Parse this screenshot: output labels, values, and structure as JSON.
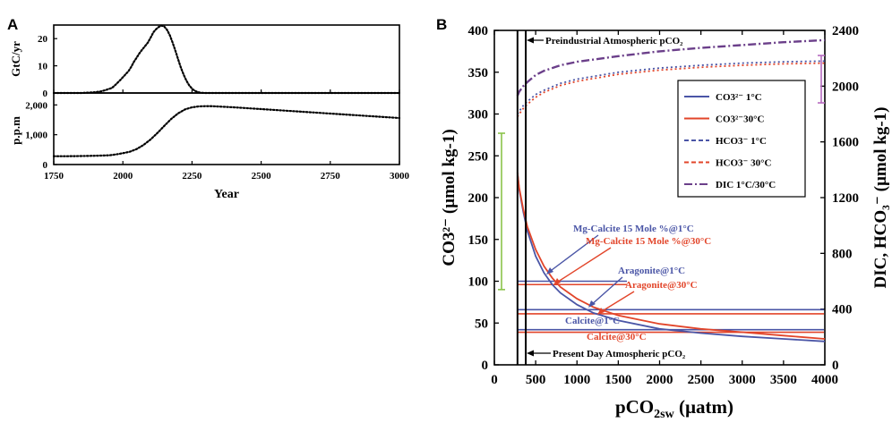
{
  "panels": {
    "a": "A",
    "b": "B"
  },
  "chart_data": [
    {
      "panel": "A",
      "type": "line",
      "subplots": [
        {
          "ylabel": "GtC/yr",
          "ylim": [
            0,
            25
          ],
          "yticks": [
            "0",
            "10",
            "20"
          ],
          "series": [
            {
              "style": "dotted",
              "x": [
                1750,
                1850,
                1900,
                1920,
                1935,
                1950,
                1960,
                1970,
                1980,
                1990,
                2000,
                2010,
                2020,
                2030,
                2040,
                2050,
                2060,
                2070,
                2080,
                2090,
                2100,
                2110,
                2120,
                2130,
                2140,
                2150,
                2160,
                2170,
                2180,
                2190,
                2200,
                2210,
                2220,
                2230,
                2240,
                2250,
                2260,
                2270,
                2280,
                2300,
                2350,
                3000
              ],
              "values": [
                0,
                0,
                0.3,
                0.6,
                1.0,
                1.5,
                1.8,
                2.7,
                3.7,
                4.7,
                5.8,
                6.9,
                8.0,
                9.6,
                11.5,
                13.0,
                14.6,
                16.0,
                17.2,
                18.5,
                20.3,
                22.3,
                23.5,
                24.3,
                24.8,
                24.4,
                23.2,
                21.2,
                18.5,
                15.5,
                12.3,
                9.3,
                6.7,
                4.5,
                2.8,
                1.6,
                0.8,
                0.4,
                0.1,
                0,
                0,
                0
              ]
            }
          ]
        },
        {
          "ylabel": "p.p.m",
          "ylim": [
            0,
            2400
          ],
          "yticks": [
            "0",
            "1,000",
            "2,000"
          ],
          "series": [
            {
              "style": "dotted",
              "x": [
                1750,
                1800,
                1850,
                1900,
                1950,
                1975,
                2000,
                2025,
                2050,
                2075,
                2100,
                2125,
                2150,
                2175,
                2200,
                2225,
                2250,
                2275,
                2300,
                2325,
                2350,
                2400,
                2450,
                2500,
                2600,
                2700,
                2800,
                2900,
                3000
              ],
              "values": [
                280,
                280,
                285,
                295,
                310,
                340,
                380,
                430,
                520,
                660,
                840,
                1060,
                1300,
                1530,
                1720,
                1850,
                1920,
                1950,
                1960,
                1955,
                1945,
                1920,
                1890,
                1860,
                1800,
                1740,
                1680,
                1620,
                1560
              ]
            }
          ]
        }
      ],
      "xlabel": "Year",
      "xlim": [
        1750,
        3000
      ],
      "xticks": [
        "1750",
        "2000",
        "2250",
        "2500",
        "2750",
        "3000"
      ]
    },
    {
      "panel": "B",
      "type": "line",
      "xlabel_base": "pCO",
      "xlabel_sub": "2sw",
      "xlabel_unit": " (µatm)",
      "xlim": [
        0,
        4000
      ],
      "xticks": [
        "0",
        "500",
        "1000",
        "1500",
        "2000",
        "2500",
        "3000",
        "3500",
        "4000"
      ],
      "ylabel_left": "CO3²⁻ (µmol kg-1)",
      "ylim_left": [
        0,
        400
      ],
      "yticks_left": [
        "0",
        "50",
        "100",
        "150",
        "200",
        "250",
        "300",
        "350",
        "400"
      ],
      "ylabel_right": "DIC, HCO₃⁻ (µmol kg-1)",
      "ylim_right": [
        0,
        2400
      ],
      "yticks_right": [
        "0",
        "400",
        "800",
        "1200",
        "1600",
        "2000",
        "2400"
      ],
      "colors": {
        "blue": "#4a55a6",
        "red": "#e2452a",
        "purple": "#6b3f8a",
        "green": "#8bc34a",
        "violet": "#b66ac0"
      },
      "legend": {
        "placement": "right",
        "entries": [
          {
            "label": "CO3²⁻ 1°C",
            "color": "#4a55a6",
            "style": "solid"
          },
          {
            "label": "CO3²⁻30°C",
            "color": "#e2452a",
            "style": "solid"
          },
          {
            "label": "HCO3⁻ 1°C",
            "color": "#4a55a6",
            "style": "dashed"
          },
          {
            "label": "HCO3⁻ 30°C",
            "color": "#e2452a",
            "style": "dashed"
          },
          {
            "label": "DIC 1°C/30°C",
            "color": "#6b3f8a",
            "style": "dashdot"
          }
        ]
      },
      "series": [
        {
          "name": "CO3²⁻ 1°C",
          "axis": "left",
          "color": "#4a55a6",
          "style": "solid",
          "x": [
            280,
            300,
            350,
            400,
            500,
            600,
            700,
            800,
            1000,
            1200,
            1500,
            2000,
            2500,
            3000,
            3500,
            4000
          ],
          "values": [
            230,
            210,
            183,
            160,
            130,
            110,
            96,
            86,
            72,
            62,
            53,
            43,
            38,
            34,
            31,
            28
          ]
        },
        {
          "name": "CO3²⁻30°C",
          "axis": "left",
          "color": "#e2452a",
          "style": "solid",
          "x": [
            280,
            300,
            350,
            400,
            500,
            600,
            700,
            800,
            1000,
            1200,
            1500,
            2000,
            2500,
            3000,
            3500,
            4000
          ],
          "values": [
            230,
            212,
            186,
            165,
            138,
            118,
            104,
            93,
            79,
            69,
            59,
            49,
            43,
            39,
            35,
            31
          ]
        },
        {
          "name": "HCO3⁻ 1°C",
          "axis": "right",
          "color": "#4a55a6",
          "style": "dotted",
          "x": [
            280,
            300,
            350,
            400,
            500,
            600,
            800,
            1000,
            1500,
            2000,
            2500,
            3000,
            3500,
            4000
          ],
          "values": [
            1800,
            1820,
            1860,
            1890,
            1940,
            1970,
            2020,
            2050,
            2100,
            2130,
            2150,
            2165,
            2175,
            2180
          ]
        },
        {
          "name": "HCO3⁻ 30°C",
          "axis": "right",
          "color": "#e2452a",
          "style": "dotted",
          "x": [
            280,
            300,
            350,
            400,
            500,
            600,
            800,
            1000,
            1500,
            2000,
            2500,
            3000,
            3500,
            4000
          ],
          "values": [
            1780,
            1800,
            1840,
            1870,
            1920,
            1955,
            2005,
            2035,
            2085,
            2115,
            2135,
            2150,
            2160,
            2165
          ]
        },
        {
          "name": "DIC 1°C/30°C",
          "axis": "right",
          "color": "#6b3f8a",
          "style": "dashdot",
          "x": [
            280,
            300,
            350,
            400,
            500,
            600,
            800,
            1000,
            1500,
            2000,
            2500,
            3000,
            3500,
            4000
          ],
          "values": [
            1930,
            1960,
            2000,
            2030,
            2080,
            2110,
            2150,
            2175,
            2215,
            2250,
            2275,
            2295,
            2315,
            2330
          ]
        }
      ],
      "hlines": [
        {
          "label": "Mg-Calcite 15 Mole %@1°C",
          "y": 100,
          "color": "#4a55a6"
        },
        {
          "label": "Mg-Calcite 15 Mole %@30°C",
          "y": 96,
          "color": "#e2452a"
        },
        {
          "label": "Aragonite@1°C",
          "y": 66,
          "color": "#4a55a6"
        },
        {
          "label": "Aragonite@30°C",
          "y": 61,
          "color": "#e2452a"
        },
        {
          "label": "Calcite@1°C",
          "y": 42,
          "color": "#4a55a6"
        },
        {
          "label": "Calcite@30°C",
          "y": 39,
          "color": "#e2452a"
        }
      ],
      "vlines": [
        {
          "label": "Preindustrial Atmospheric pCO₂",
          "x": 280
        },
        {
          "label": "Present Day Atmospheric pCO₂",
          "x": 380
        }
      ],
      "range_bars": [
        {
          "axis": "left",
          "from": 90,
          "to": 277,
          "color": "#8bc34a"
        },
        {
          "axis": "right",
          "from": 1880,
          "to": 2220,
          "color": "#b66ac0"
        }
      ]
    }
  ]
}
